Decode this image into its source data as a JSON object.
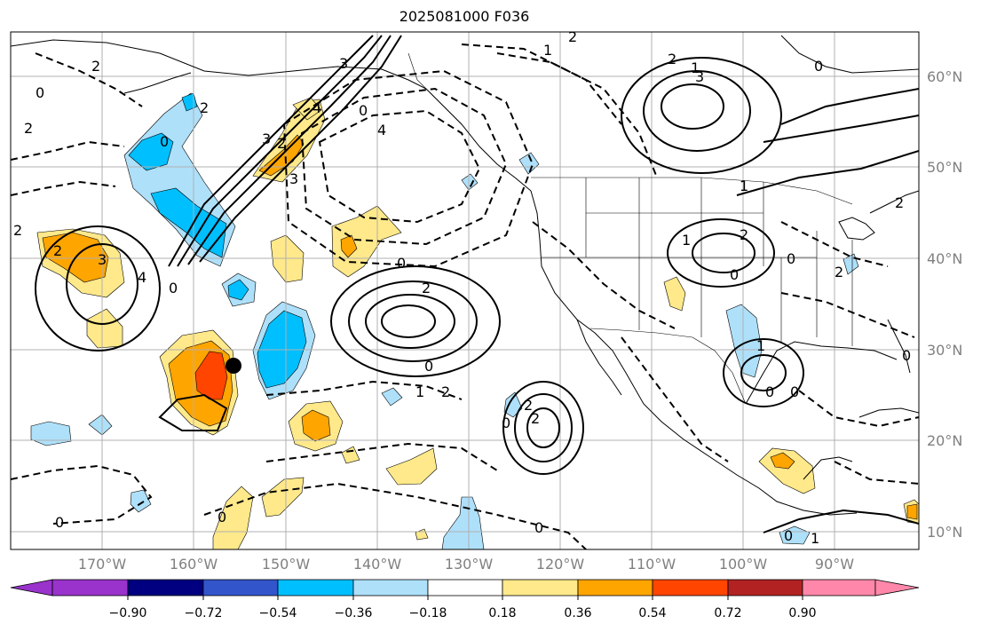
{
  "title": "2025081000 F036",
  "lat_labels": [
    "60°N",
    "50°N",
    "40°N",
    "30°N",
    "20°N",
    "10°N"
  ],
  "lon_labels": [
    "170°W",
    "160°W",
    "150°W",
    "140°W",
    "130°W",
    "120°W",
    "110°W",
    "100°W",
    "90°W"
  ],
  "colorbar": {
    "ticks": [
      "−0.90",
      "−0.72",
      "−0.54",
      "−0.36",
      "−0.18",
      "0.18",
      "0.36",
      "0.54",
      "0.72",
      "0.90"
    ],
    "colors": [
      "#9933cc",
      "#000080",
      "#3355cc",
      "#00bfff",
      "#aee0fa",
      "#ffffff",
      "#ffe98a",
      "#ffa500",
      "#ff4500",
      "#b22222",
      "#ff88aa"
    ]
  },
  "contour_labels": [
    "1",
    "2",
    "2",
    "2",
    "0",
    "2",
    "2",
    "3",
    "4",
    "0",
    "0",
    "3",
    "2",
    "2",
    "4",
    "3",
    "0",
    "3",
    "4",
    "0",
    "2",
    "1",
    "2",
    "0",
    "0",
    "2",
    "2",
    "0",
    "1",
    "2",
    "3",
    "0",
    "1",
    "0",
    "0",
    "2",
    "0",
    "1",
    "0",
    "2",
    "0",
    "0",
    "2",
    "0",
    "1",
    "1",
    "0"
  ],
  "marker": {
    "name": "point-marker",
    "color": "#000000"
  }
}
